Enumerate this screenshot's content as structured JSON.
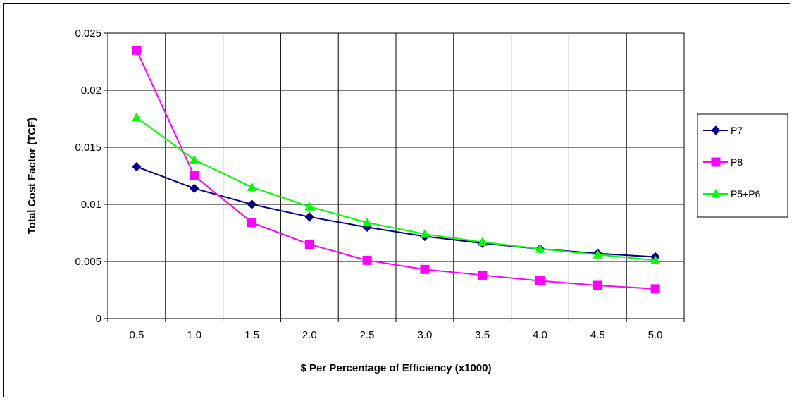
{
  "chart_data": {
    "type": "line",
    "title": "",
    "xlabel": "$ Per Percentage of Efficiency (x1000)",
    "ylabel": "Total Cost Factor (TCF)",
    "x": [
      "0.5",
      "1.0",
      "1.5",
      "2.0",
      "2.5",
      "3.0",
      "3.5",
      "4.0",
      "4.5",
      "5.0"
    ],
    "yticks": [
      "0",
      "0.005",
      "0.01",
      "0.015",
      "0.02",
      "0.025"
    ],
    "ylim": [
      0,
      0.025
    ],
    "grid": true,
    "legend_position": "right",
    "series": [
      {
        "name": "P7",
        "color": "#000080",
        "marker": "diamond",
        "values": [
          0.0133,
          0.0114,
          0.01,
          0.0089,
          0.008,
          0.0072,
          0.0066,
          0.0061,
          0.0057,
          0.0054
        ]
      },
      {
        "name": "P8",
        "color": "#ff00ff",
        "marker": "square",
        "values": [
          0.0235,
          0.0125,
          0.0084,
          0.0065,
          0.0051,
          0.0043,
          0.0038,
          0.0033,
          0.0029,
          0.0026
        ]
      },
      {
        "name": "P5+P6",
        "color": "#00ff00",
        "marker": "triangle",
        "values": [
          0.0176,
          0.0139,
          0.0115,
          0.0098,
          0.0084,
          0.0074,
          0.0067,
          0.0061,
          0.0056,
          0.0051
        ]
      }
    ]
  }
}
